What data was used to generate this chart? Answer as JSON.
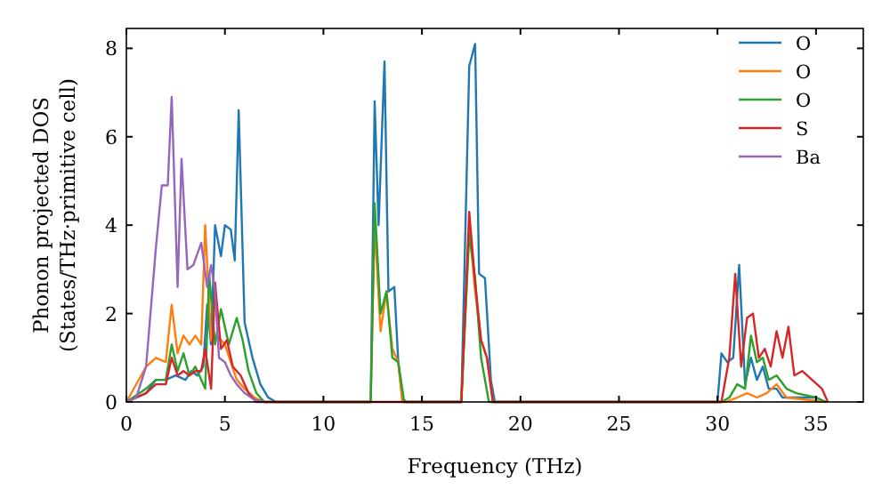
{
  "chart_data": {
    "type": "line",
    "xlabel": "Frequency (THz)",
    "ylabel": "Phonon projected DOS\n(States/THz·primitive cell)",
    "xlim": [
      0,
      37.4
    ],
    "ylim": [
      0,
      8.45
    ],
    "xticks": [
      0,
      5,
      10,
      15,
      20,
      25,
      30,
      35
    ],
    "yticks": [
      0,
      2,
      4,
      6,
      8
    ],
    "grid": false,
    "legend": "top right",
    "line_style": "solid",
    "series": [
      {
        "name": "O",
        "color": "#1f77b4",
        "x": [
          0,
          1,
          1.5,
          2,
          2.5,
          3,
          3.3,
          3.6,
          3.9,
          4.1,
          4.3,
          4.5,
          4.8,
          5.0,
          5.3,
          5.5,
          5.7,
          6,
          6.4,
          6.8,
          7.2,
          7.6,
          12.4,
          12.6,
          12.8,
          13.1,
          13.3,
          13.6,
          13.8,
          14,
          14.2,
          17.0,
          17.4,
          17.7,
          17.9,
          18.2,
          18.5,
          18.7,
          30.0,
          30.2,
          30.5,
          30.8,
          31.1,
          31.4,
          31.7,
          32,
          32.3,
          32.6,
          33,
          33.3,
          34,
          35,
          35.5
        ],
        "values": [
          0,
          0.2,
          0.5,
          0.5,
          0.6,
          0.5,
          0.7,
          0.6,
          0.8,
          2.2,
          1.3,
          4.0,
          3.3,
          4.0,
          3.9,
          3.2,
          6.6,
          1.8,
          1.0,
          0.4,
          0.1,
          0,
          0,
          6.8,
          4.0,
          7.7,
          2.5,
          2.6,
          0.9,
          0.1,
          0,
          0,
          7.6,
          8.1,
          2.9,
          2.8,
          0.5,
          0,
          0,
          1.1,
          0.9,
          1.0,
          3.1,
          0.4,
          1.0,
          0.5,
          0.8,
          0.3,
          0.3,
          0.1,
          0.1,
          0.1,
          0
        ]
      },
      {
        "name": "O",
        "color": "#ff7f0e",
        "x": [
          0,
          1,
          1.5,
          2,
          2.3,
          2.6,
          2.9,
          3.2,
          3.5,
          3.8,
          4.0,
          4.3,
          4.6,
          5.0,
          5.3,
          5.6,
          6,
          6.5,
          7,
          12.4,
          12.6,
          12.9,
          13.2,
          13.5,
          13.8,
          14,
          17.0,
          17.4,
          17.7,
          18.0,
          18.3,
          18.6,
          30.4,
          31,
          31.5,
          32,
          32.5,
          33,
          33.5,
          35.5
        ],
        "values": [
          0,
          0.8,
          1.0,
          0.9,
          2.2,
          1.1,
          1.5,
          1.3,
          1.5,
          1.3,
          4.0,
          1.4,
          1.5,
          1.3,
          0.9,
          0.5,
          0.3,
          0.1,
          0,
          0,
          4.0,
          1.6,
          2.5,
          1.2,
          0.9,
          0,
          0,
          4.0,
          2.5,
          1.4,
          1.0,
          0,
          0,
          0.1,
          0.2,
          0.1,
          0.2,
          0.4,
          0.1,
          0
        ]
      },
      {
        "name": "O",
        "color": "#2ca02c",
        "x": [
          0,
          1,
          1.5,
          2,
          2.3,
          2.6,
          2.9,
          3.2,
          3.5,
          4.0,
          4.2,
          4.5,
          4.8,
          5.2,
          5.6,
          5.9,
          6.2,
          6.6,
          7,
          12.4,
          12.6,
          12.9,
          13.2,
          13.5,
          13.8,
          14.1,
          17.0,
          17.4,
          17.7,
          18,
          18.4,
          30.2,
          30.6,
          31,
          31.4,
          31.7,
          32,
          32.3,
          32.6,
          33,
          33.5,
          34,
          35,
          35.5
        ],
        "values": [
          0,
          0.3,
          0.5,
          0.5,
          1.3,
          0.7,
          1.1,
          0.6,
          0.8,
          0.3,
          2.9,
          1.3,
          2.1,
          1.3,
          1.9,
          1.4,
          0.7,
          0.2,
          0,
          0,
          4.5,
          2.0,
          2.5,
          1.0,
          0.9,
          0,
          0,
          3.8,
          2.8,
          1.0,
          0,
          0,
          0.1,
          0.4,
          0.3,
          1.5,
          0.9,
          1.0,
          0.5,
          0.6,
          0.3,
          0.2,
          0.1,
          0
        ]
      },
      {
        "name": "S",
        "color": "#d62728",
        "x": [
          0,
          1,
          1.5,
          2,
          2.3,
          2.6,
          2.9,
          3.2,
          3.5,
          3.8,
          4.0,
          4.3,
          4.5,
          4.8,
          5.1,
          5.4,
          5.8,
          6.2,
          6.6,
          17.0,
          17.4,
          17.7,
          18.0,
          18.3,
          18.6,
          30.2,
          30.6,
          30.9,
          31.2,
          31.5,
          31.8,
          32.1,
          32.4,
          32.7,
          33.0,
          33.3,
          33.6,
          33.9,
          34.3,
          34.8,
          35.3,
          35.6
        ],
        "values": [
          0,
          0.2,
          0.4,
          0.4,
          1.0,
          0.6,
          0.7,
          0.6,
          0.7,
          0.7,
          1.2,
          0.3,
          2.7,
          1.2,
          1.4,
          0.8,
          0.6,
          0.2,
          0,
          0,
          4.3,
          2.7,
          1.4,
          1.0,
          0,
          0,
          1.0,
          2.9,
          0.8,
          1.9,
          2.0,
          1.0,
          1.2,
          0.8,
          1.6,
          1.0,
          1.7,
          0.6,
          0.7,
          0.5,
          0.3,
          0
        ]
      },
      {
        "name": "Ba",
        "color": "#9467bd",
        "x": [
          0,
          0.5,
          1,
          1.5,
          1.8,
          2.1,
          2.3,
          2.6,
          2.8,
          3.1,
          3.4,
          3.8,
          4.1,
          4.3,
          4.5,
          4.7,
          5,
          5.3,
          5.6,
          6,
          6.5,
          7
        ],
        "values": [
          0,
          0.1,
          0.8,
          3.5,
          4.9,
          4.9,
          6.9,
          2.6,
          5.5,
          3.0,
          3.1,
          3.6,
          2.6,
          3.1,
          2.5,
          1.0,
          0.9,
          0.6,
          0.4,
          0.2,
          0.05,
          0
        ]
      }
    ]
  }
}
